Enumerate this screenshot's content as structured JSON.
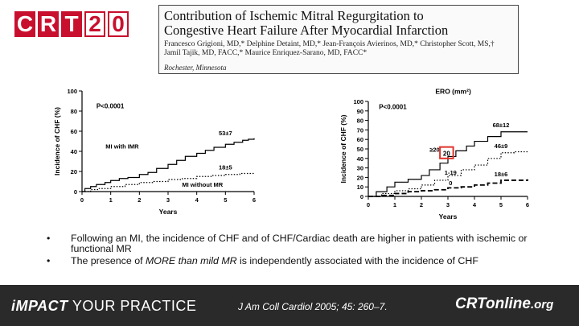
{
  "logo": {
    "letters": [
      "C",
      "R",
      "T",
      "2",
      "0"
    ]
  },
  "paper": {
    "title_line1": "Contribution of Ischemic Mitral Regurgitation to",
    "title_line2": "Congestive Heart Failure After Myocardial Infarction",
    "authors_line1": "Francesco Grigioni, MD,* Delphine Detaint, MD,* Jean-François Avierinos, MD,* Christopher Scott, MS,†",
    "authors_line2": "Jamil Tajik, MD, FACC,* Maurice Enriquez-Sarano, MD, FACC*",
    "location": "Rochester, Minnesota"
  },
  "chart_data": [
    {
      "type": "line",
      "title": "",
      "xlabel": "Years",
      "ylabel": "Incidence of CHF (%)",
      "xlim": [
        0,
        6
      ],
      "ylim": [
        0,
        100
      ],
      "xticks": [
        0,
        1,
        2,
        3,
        4,
        5,
        6
      ],
      "yticks": [
        0,
        20,
        40,
        60,
        80,
        100
      ],
      "pvalue": "P<0.0001",
      "series": [
        {
          "name": "MI with IMR",
          "style": "solid",
          "end_label": "53±7",
          "x": [
            0,
            0.1,
            0.3,
            0.5,
            0.8,
            1.0,
            1.3,
            1.6,
            2.0,
            2.3,
            2.6,
            3.0,
            3.3,
            3.6,
            4.0,
            4.3,
            4.6,
            5.0,
            5.3,
            5.6,
            5.8,
            6.0
          ],
          "y": [
            0,
            3,
            5,
            7,
            9,
            11,
            13,
            14,
            17,
            19,
            23,
            27,
            31,
            35,
            38,
            41,
            44,
            47,
            49,
            51,
            52,
            53
          ]
        },
        {
          "name": "MI without MR",
          "style": "dotted",
          "end_label": "18±5",
          "x": [
            0,
            0.3,
            0.6,
            1.0,
            1.5,
            2.0,
            2.5,
            3.0,
            3.5,
            4.0,
            4.5,
            5.0,
            5.5,
            6.0
          ],
          "y": [
            0,
            2,
            3,
            5,
            7,
            9,
            10,
            12,
            13,
            15,
            16,
            17,
            18,
            18
          ]
        }
      ]
    },
    {
      "type": "line",
      "title": "ERO (mm²)",
      "xlabel": "Years",
      "ylabel": "Incidence of CHF (%)",
      "xlim": [
        0,
        6
      ],
      "ylim": [
        0,
        100
      ],
      "xticks": [
        0,
        1,
        2,
        3,
        4,
        5,
        6
      ],
      "yticks": [
        0,
        10,
        20,
        30,
        40,
        50,
        60,
        70,
        80,
        90,
        100
      ],
      "pvalue": "P<0.0001",
      "highlight": "20",
      "series": [
        {
          "name": "≥20",
          "style": "solid",
          "end_label": "68±12",
          "x": [
            0,
            0.3,
            0.7,
            1.0,
            1.5,
            2.0,
            2.3,
            2.7,
            3.0,
            3.3,
            3.7,
            4.0,
            4.5,
            5.0,
            6.0
          ],
          "y": [
            0,
            5,
            10,
            15,
            18,
            22,
            28,
            35,
            42,
            48,
            53,
            58,
            63,
            68,
            68
          ]
        },
        {
          "name": "1-19",
          "style": "dotted",
          "end_label": "46±9",
          "x": [
            0,
            0.5,
            1.0,
            1.5,
            2.0,
            2.5,
            3.0,
            3.5,
            4.0,
            4.5,
            5.0,
            5.5,
            6.0
          ],
          "y": [
            0,
            3,
            6,
            8,
            12,
            17,
            22,
            28,
            33,
            40,
            46,
            47,
            47
          ]
        },
        {
          "name": "0",
          "style": "dashed",
          "end_label": "18±6",
          "x": [
            0,
            0.5,
            1.0,
            1.5,
            2.0,
            2.5,
            3.0,
            3.5,
            4.0,
            4.5,
            5.0,
            6.0
          ],
          "y": [
            0,
            1,
            3,
            5,
            6,
            7,
            9,
            10,
            12,
            14,
            17,
            18
          ]
        }
      ]
    }
  ],
  "bullets": [
    "Following an MI, the incidence of CHF and of CHF/Cardiac death are higher in patients with ischemic or functional MR",
    "The presence of MORE than mild MR is independently associated with the incidence of CHF"
  ],
  "bullet2_parts": {
    "before": "The presence of ",
    "emph": "MORE than mild MR",
    "after": " is independently associated with the incidence of CHF"
  },
  "footer": {
    "left_impact": "iMPACT",
    "left_rest": " YOUR PRACTICE",
    "citation": "J Am Coll Cardiol 2005; 45: 260–7.",
    "logo_main": "CRTonline",
    "logo_suffix": ".org"
  },
  "colors": {
    "brand_red": "#c8102e",
    "footer_bg": "#2a2a2a",
    "highlight_box": "#e0312a"
  }
}
